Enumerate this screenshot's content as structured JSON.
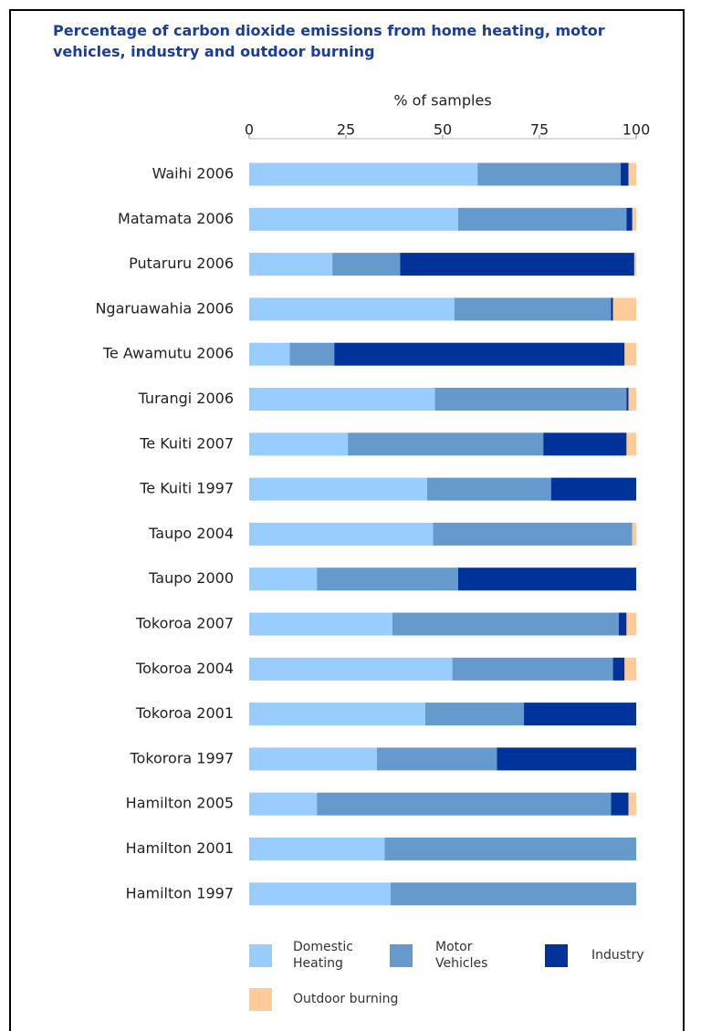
{
  "chart_data": {
    "type": "stacked-hbar",
    "title": "Percentage of carbon dioxide emissions from home heating, motor vehicles, industry and outdoor burning",
    "x_label": "% of samples",
    "xlim": [
      0,
      100
    ],
    "xticks": [
      0,
      25,
      50,
      75,
      100
    ],
    "categories": [
      "Waihi 2006",
      "Matamata 2006",
      "Putaruru 2006",
      "Ngaruawahia 2006",
      "Te Awamutu 2006",
      "Turangi 2006",
      "Te Kuiti 2007",
      "Te Kuiti 1997",
      "Taupo 2004",
      "Taupo 2000",
      "Tokoroa 2007",
      "Tokoroa 2004",
      "Tokoroa 2001",
      "Tokorora 1997",
      "Hamilton 2005",
      "Hamilton 2001",
      "Hamilton 1997"
    ],
    "series": [
      {
        "name": "Domestic Heating",
        "color": "#99ccff",
        "values": [
          59,
          54,
          21.5,
          53,
          10.5,
          48,
          25.5,
          46,
          47.5,
          17.5,
          37,
          52.5,
          45.5,
          33,
          17.5,
          35,
          36.5
        ]
      },
      {
        "name": "Motor Vehicles",
        "color": "#6699cc",
        "values": [
          37,
          43.5,
          17.5,
          40.5,
          11.5,
          49.5,
          50.5,
          32,
          51.5,
          36.5,
          58.5,
          41.5,
          25.5,
          31,
          76,
          65,
          63.5
        ]
      },
      {
        "name": "Industry",
        "color": "#003399",
        "values": [
          2,
          1.5,
          60.5,
          0.5,
          75,
          0.5,
          21.5,
          22,
          0,
          46,
          2,
          3,
          29,
          36,
          4.5,
          0,
          0
        ]
      },
      {
        "name": "Outdoor burning",
        "color": "#ffcc99",
        "values": [
          2,
          1,
          0.5,
          6,
          3,
          2,
          2.5,
          0,
          1,
          0,
          2.5,
          3,
          0,
          0,
          2,
          0,
          0
        ]
      }
    ]
  }
}
